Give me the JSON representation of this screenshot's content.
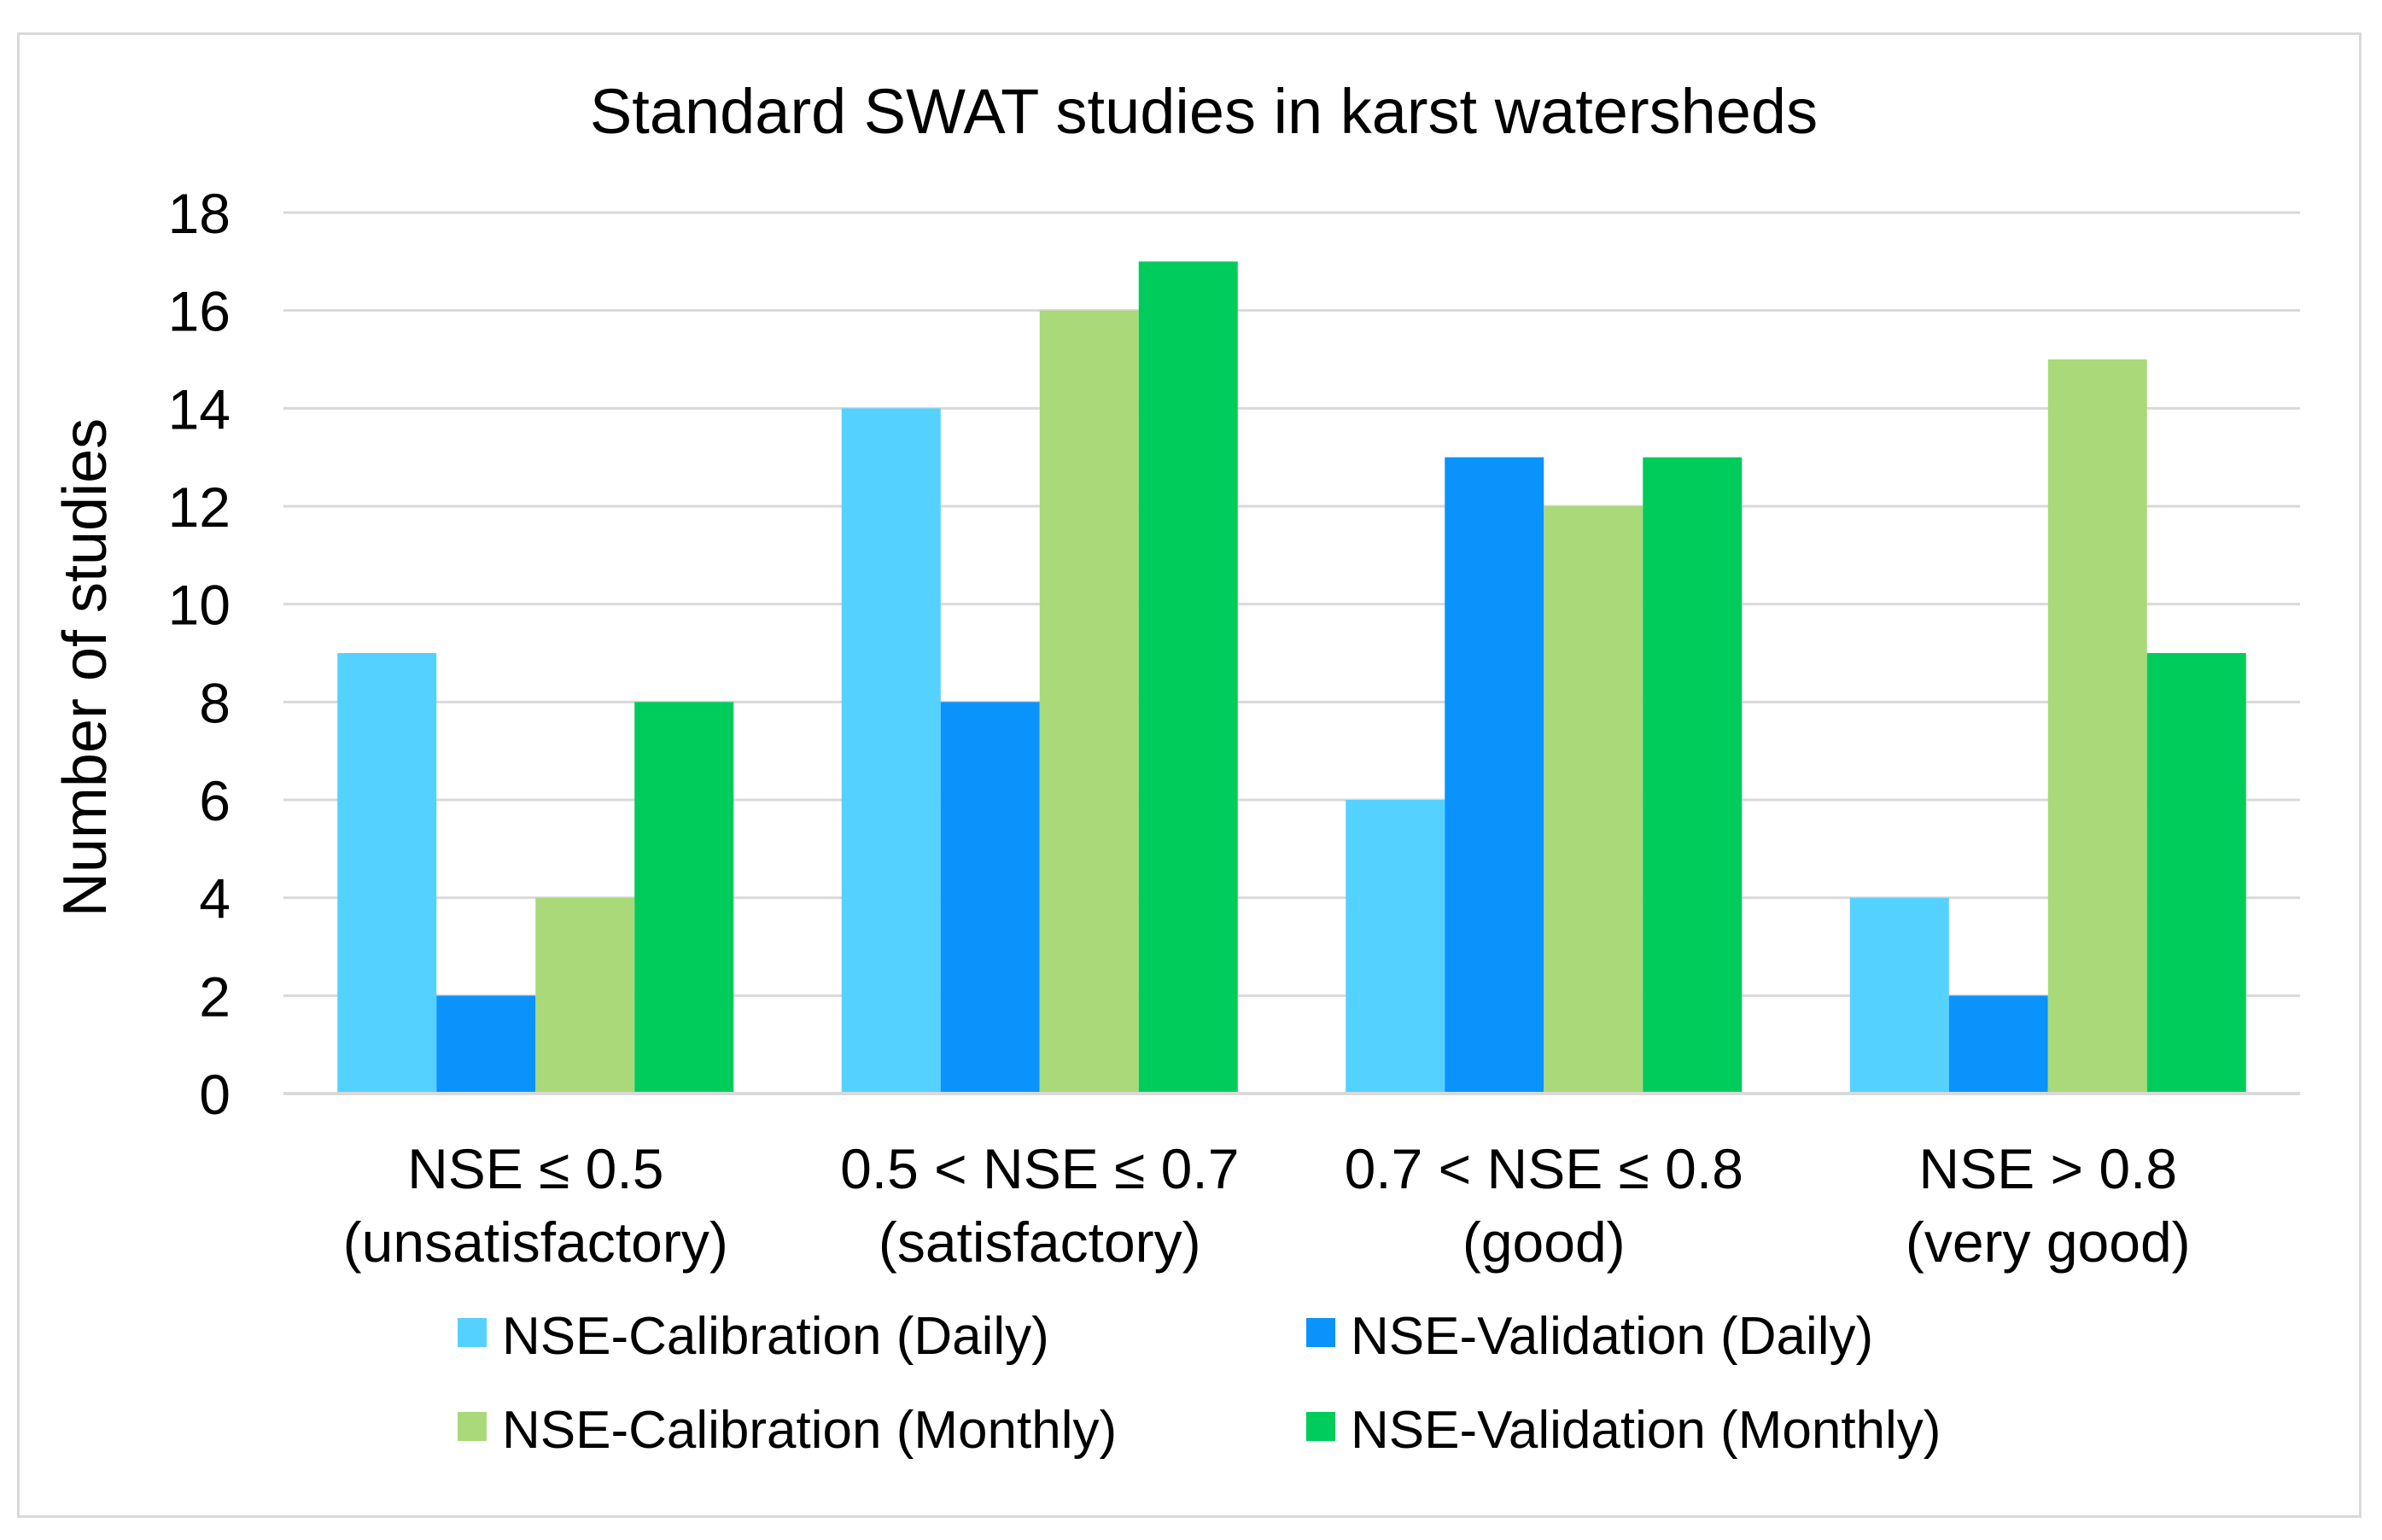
{
  "chart_data": {
    "type": "bar",
    "title": "Standard SWAT studies in karst watersheds",
    "xlabel": "",
    "ylabel": "Number of studies",
    "ylim": [
      0,
      18
    ],
    "ytick_step": 2,
    "ytick_labels": [
      "0",
      "2",
      "4",
      "6",
      "8",
      "10",
      "12",
      "14",
      "16",
      "18"
    ],
    "grid": true,
    "legend_position": "bottom",
    "categories": [
      [
        "NSE ≤ 0.5",
        "(unsatisfactory)"
      ],
      [
        "0.5 < NSE ≤ 0.7",
        "(satisfactory)"
      ],
      [
        "0.7 < NSE ≤ 0.8",
        "(good)"
      ],
      [
        "NSE > 0.8",
        "(very good)"
      ]
    ],
    "series": [
      {
        "name": "NSE-Calibration (Daily)",
        "color": "#55d1ff",
        "values": [
          9,
          14,
          6,
          4
        ]
      },
      {
        "name": "NSE-Validation (Daily)",
        "color": "#0a93fb",
        "values": [
          2,
          8,
          13,
          2
        ]
      },
      {
        "name": "NSE-Calibration (Monthly)",
        "color": "#a9d978",
        "values": [
          4,
          16,
          12,
          15
        ]
      },
      {
        "name": "NSE-Validation (Monthly)",
        "color": "#00cc5c",
        "values": [
          8,
          17,
          13,
          9
        ]
      }
    ]
  }
}
